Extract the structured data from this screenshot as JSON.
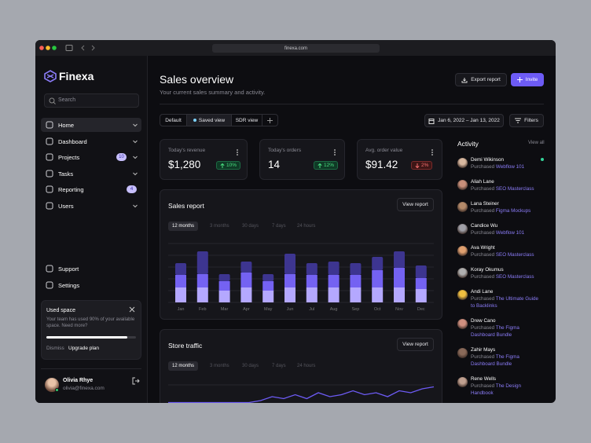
{
  "browser": {
    "url": "finexa.com"
  },
  "sidebar": {
    "brand": "Finexa",
    "search": "Search",
    "nav": [
      {
        "label": "Home",
        "expandable": true
      },
      {
        "label": "Dashboard",
        "expandable": true
      },
      {
        "label": "Projects",
        "badge": 10,
        "expandable": true
      },
      {
        "label": "Tasks",
        "expandable": true
      },
      {
        "label": "Reporting",
        "badge": 4,
        "expandable": false
      },
      {
        "label": "Users",
        "expandable": true
      }
    ],
    "footer_nav": [
      "Support",
      "Settings"
    ],
    "usage_card": {
      "title": "Used space",
      "text": "Your team has used 90% of your available space. Need more?",
      "used_percent": 90,
      "dismiss": "Dismiss",
      "upgrade": "Upgrade plan"
    },
    "user": {
      "name": "Olivia Rhye",
      "email": "olivia@finexa.com"
    }
  },
  "header": {
    "title": "Sales overview",
    "subtitle": "Your current sales summary and activity.",
    "export": "Export report",
    "invite": "Invite",
    "views": [
      "Default",
      "Saved view",
      "SDR view"
    ],
    "date_range": "Jan 6, 2022 – Jan 13, 2022",
    "filters": "Filters"
  },
  "stats": [
    {
      "label": "Today's revenue",
      "value": "$1,280",
      "change": "10%",
      "trend": "up"
    },
    {
      "label": "Today's orders",
      "value": "14",
      "change": "12%",
      "trend": "up"
    },
    {
      "label": "Avg. order value",
      "value": "$91.42",
      "change": "2%",
      "trend": "down"
    }
  ],
  "chart_data": [
    {
      "type": "bar",
      "stacked": true,
      "title": "Sales report",
      "button": "View report",
      "ranges": [
        "12 months",
        "3 months",
        "30 days",
        "7 days",
        "24 hours"
      ],
      "categories": [
        "Jan",
        "Feb",
        "Mar",
        "Apr",
        "May",
        "Jun",
        "Jul",
        "Aug",
        "Sep",
        "Oct",
        "Nov",
        "Dec"
      ],
      "series": [
        {
          "color": "#b4a8ff",
          "values": [
            19,
            19,
            15,
            19,
            15,
            19,
            19,
            19,
            19,
            19,
            19,
            17
          ]
        },
        {
          "color": "#7462f2",
          "values": [
            16,
            17,
            12,
            19,
            12,
            17,
            16,
            16,
            16,
            22,
            25,
            14
          ]
        },
        {
          "color": "#3d3590",
          "values": [
            15,
            29,
            9,
            14,
            9,
            26,
            15,
            17,
            15,
            17,
            21,
            16
          ]
        }
      ],
      "ylim": [
        0,
        80
      ]
    },
    {
      "type": "line",
      "title": "Store traffic",
      "button": "View report",
      "ranges": [
        "12 months",
        "3 months",
        "30 days",
        "7 days",
        "24 hours"
      ],
      "color": "#6d5bf5",
      "values": [
        1,
        1,
        1,
        1,
        1,
        1,
        1,
        1,
        2,
        4,
        3,
        5,
        3,
        6,
        4,
        5,
        7,
        5,
        6,
        4,
        7,
        6,
        8,
        9
      ],
      "ylim": [
        0,
        10
      ]
    }
  ],
  "activity": {
    "title": "Activity",
    "view_all": "View all",
    "action": "Purchased",
    "items": [
      {
        "name": "Demi Wikinson",
        "product": "Webflow 101"
      },
      {
        "name": "Aliah Lane",
        "product": "SEO Masterclass"
      },
      {
        "name": "Lana Steiner",
        "product": "Figma Mockups"
      },
      {
        "name": "Candice Wu",
        "product": "Webflow 101"
      },
      {
        "name": "Ava Wright",
        "product": "SEO Masterclass"
      },
      {
        "name": "Koray Okumus",
        "product": "SEO Masterclass"
      },
      {
        "name": "Andi Lane",
        "product": "The Ultimate Guide to Backlinks"
      },
      {
        "name": "Drew Cano",
        "product": "The Figma Dashboard Bundle"
      },
      {
        "name": "Zahir Mays",
        "product": "The Figma Dashboard Bundle"
      },
      {
        "name": "Rene Wells",
        "product": "The Design Handbook"
      }
    ]
  }
}
